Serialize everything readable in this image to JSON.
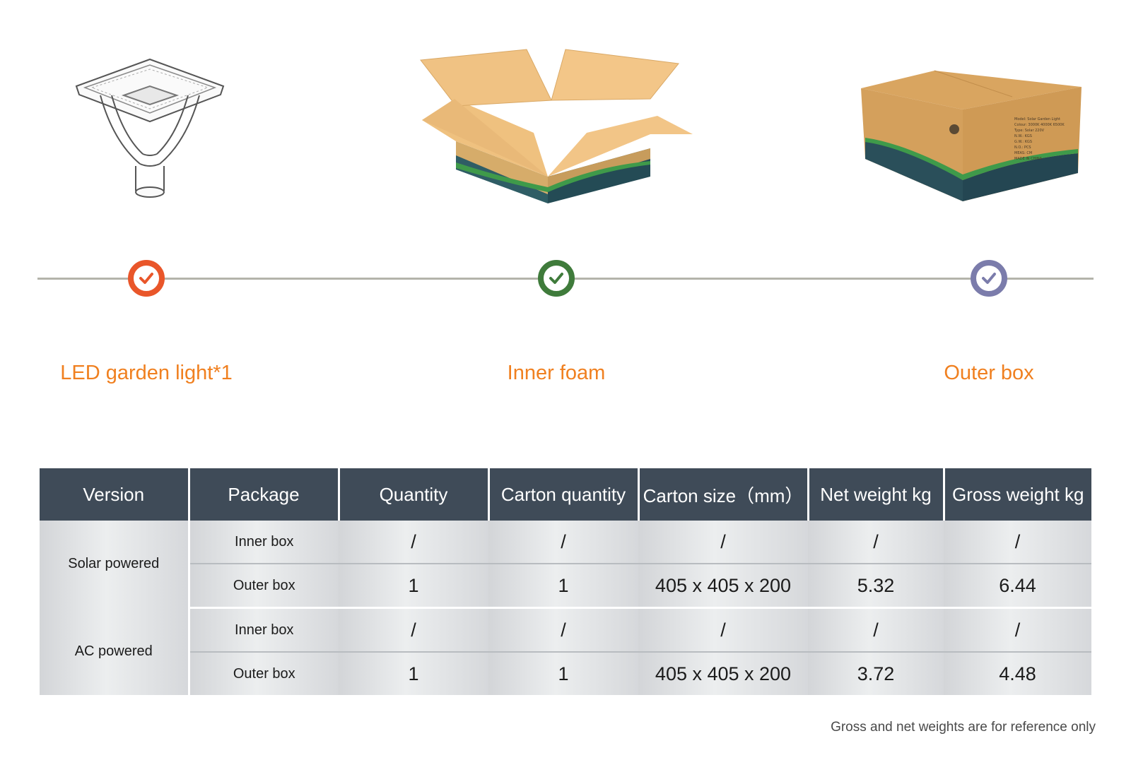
{
  "steps": [
    {
      "label": "LED garden light*1",
      "check_color": "#e9562a"
    },
    {
      "label": "Inner foam",
      "check_color": "#3f7b3b"
    },
    {
      "label": "Outer box",
      "check_color": "#7b7cab"
    }
  ],
  "table": {
    "headers": [
      "Version",
      "Package",
      "Quantity",
      "Carton quantity",
      "Carton size（mm）",
      "Net weight kg",
      "Gross weight kg"
    ],
    "groups": [
      {
        "version": "Solar powered",
        "rows": [
          {
            "package": "Inner box",
            "quantity": "/",
            "carton_quantity": "/",
            "carton_size": "/",
            "net_weight": "/",
            "gross_weight": "/"
          },
          {
            "package": "Outer box",
            "quantity": "1",
            "carton_quantity": "1",
            "carton_size": "405 x 405 x 200",
            "net_weight": "5.32",
            "gross_weight": "6.44"
          }
        ]
      },
      {
        "version": "AC powered",
        "rows": [
          {
            "package": "Inner box",
            "quantity": "/",
            "carton_quantity": "/",
            "carton_size": "/",
            "net_weight": "/",
            "gross_weight": "/"
          },
          {
            "package": "Outer box",
            "quantity": "1",
            "carton_quantity": "1",
            "carton_size": "405 x 405 x 200",
            "net_weight": "3.72",
            "gross_weight": "4.48"
          }
        ]
      }
    ]
  },
  "box_print": {
    "lines": [
      "Model: Solar Garden Light",
      "Colour: 3000K  4000K  6500K",
      "Type: Solar  220V",
      "N.W.: KGS",
      "G.W.: KGS",
      "N.O.: PCS",
      "MEAS: CM",
      "MADE IN CHINA"
    ]
  },
  "footnote": "Gross and net weights are for reference only"
}
